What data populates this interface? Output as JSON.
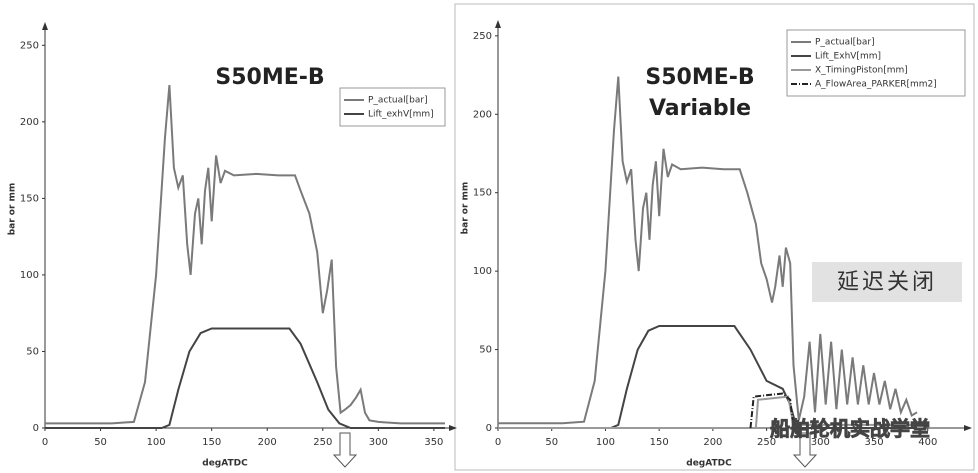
{
  "chart_data": [
    {
      "type": "line",
      "title": "S50ME-B",
      "x_label": "degATDC",
      "y_label": "bar or mm",
      "xlim": [
        0,
        360
      ],
      "ylim": [
        0,
        260
      ],
      "xticks": [
        0,
        50,
        100,
        150,
        200,
        250,
        300,
        350
      ],
      "yticks": [
        0,
        50,
        100,
        150,
        200,
        250
      ],
      "series": [
        {
          "name": "P_actual[bar]",
          "color": "#7a7a7a",
          "x": [
            0,
            60,
            80,
            90,
            100,
            108,
            112,
            116,
            120,
            124,
            128,
            131,
            135,
            138,
            141,
            144,
            147,
            150,
            154,
            158,
            162,
            170,
            190,
            210,
            225,
            230,
            238,
            245,
            250,
            254,
            258,
            262,
            266,
            270,
            275,
            280,
            284,
            288,
            292,
            300,
            320,
            360
          ],
          "values": [
            3,
            3,
            4,
            30,
            100,
            190,
            224,
            170,
            157,
            165,
            120,
            100,
            140,
            150,
            120,
            155,
            170,
            135,
            178,
            160,
            168,
            165,
            166,
            165,
            165,
            155,
            140,
            115,
            75,
            90,
            110,
            40,
            10,
            12,
            15,
            20,
            25,
            10,
            5,
            4,
            3,
            3
          ]
        },
        {
          "name": "Lift_exhV[mm]",
          "color": "#444444",
          "x": [
            0,
            105,
            112,
            120,
            130,
            140,
            150,
            220,
            230,
            245,
            255,
            265,
            275,
            360
          ],
          "values": [
            0,
            0,
            2,
            25,
            50,
            62,
            65,
            65,
            55,
            30,
            12,
            3,
            0,
            0
          ]
        }
      ]
    },
    {
      "type": "line",
      "title": "S50ME-B",
      "subtitle": "Variable",
      "x_label": "degATDC",
      "y_label": "bar or mm",
      "xlim": [
        0,
        430
      ],
      "ylim": [
        0,
        255
      ],
      "xticks": [
        0,
        50,
        100,
        150,
        200,
        250,
        300,
        350,
        400
      ],
      "yticks": [
        0,
        50,
        100,
        150,
        200,
        250
      ],
      "annotation": "延迟关闭",
      "watermark": "船舶轮机实战学堂",
      "series": [
        {
          "name": "P_actual[bar]",
          "color": "#7a7a7a",
          "x": [
            0,
            60,
            80,
            90,
            100,
            108,
            112,
            116,
            120,
            124,
            128,
            131,
            135,
            138,
            141,
            144,
            147,
            150,
            154,
            158,
            162,
            170,
            190,
            210,
            225,
            232,
            240,
            245,
            250,
            255,
            258,
            262,
            265,
            268,
            272,
            275,
            280,
            285,
            290,
            295,
            300,
            305,
            310,
            315,
            320,
            325,
            330,
            335,
            340,
            345,
            350,
            355,
            360,
            365,
            370,
            375,
            380,
            385,
            390
          ],
          "values": [
            3,
            3,
            4,
            30,
            100,
            190,
            224,
            170,
            157,
            165,
            120,
            100,
            140,
            150,
            120,
            155,
            170,
            135,
            178,
            160,
            168,
            165,
            166,
            165,
            165,
            150,
            130,
            105,
            95,
            80,
            90,
            110,
            90,
            115,
            105,
            40,
            5,
            20,
            55,
            10,
            60,
            15,
            55,
            12,
            50,
            15,
            45,
            15,
            40,
            15,
            35,
            15,
            30,
            12,
            25,
            10,
            18,
            8,
            10
          ]
        },
        {
          "name": "Lift_ExhV[mm]",
          "color": "#444444",
          "x": [
            0,
            105,
            112,
            120,
            130,
            140,
            150,
            220,
            235,
            250,
            265,
            272,
            278,
            390
          ],
          "values": [
            0,
            0,
            2,
            25,
            50,
            62,
            65,
            65,
            50,
            30,
            25,
            15,
            0,
            0
          ]
        },
        {
          "name": "X_TimingPiston[mm]",
          "color": "#9a9a9a",
          "x": [
            0,
            240,
            242,
            270,
            275,
            390
          ],
          "values": [
            0,
            0,
            18,
            20,
            2,
            2
          ]
        },
        {
          "name": "A_FlowArea_PARKER[mm2]",
          "color": "#222222",
          "dash": "6 2 1 2",
          "x": [
            235,
            238,
            265,
            272,
            275
          ],
          "values": [
            0,
            20,
            22,
            18,
            0
          ]
        }
      ]
    }
  ]
}
